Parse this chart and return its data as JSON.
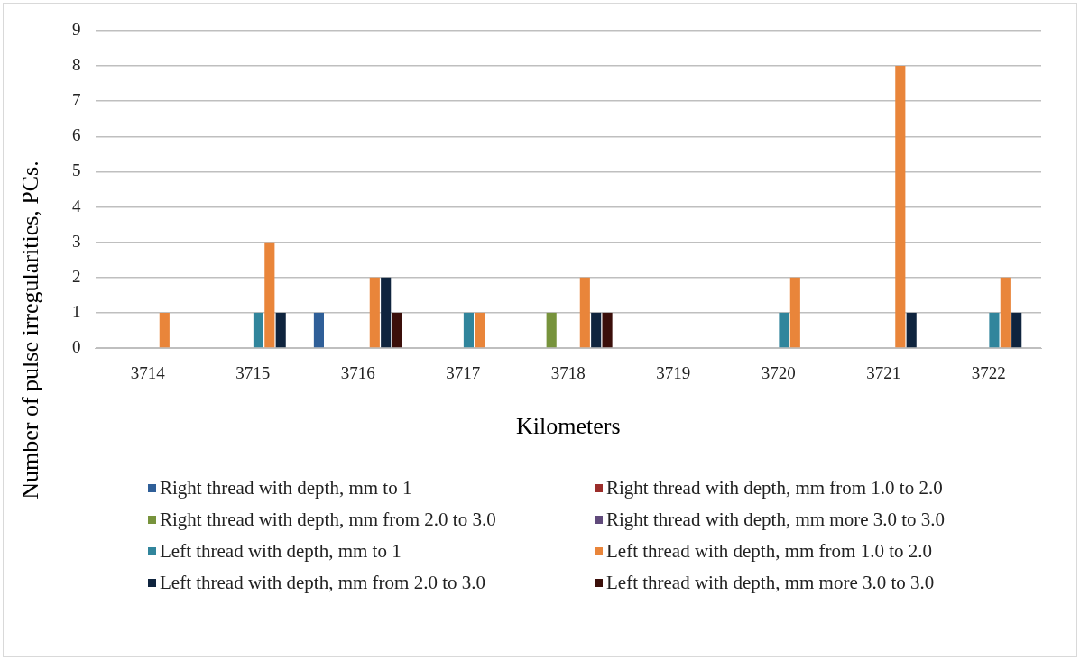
{
  "chart_data": {
    "type": "bar",
    "xlabel": "Kilometers",
    "ylabel": "Number  of  pulse  irregularities,   PCs.",
    "categories": [
      "3714",
      "3715",
      "3716",
      "3717",
      "3718",
      "3719",
      "3720",
      "3721",
      "3722"
    ],
    "series": [
      {
        "name": "Right thread with depth, mm to 1",
        "color": "#2f5f98",
        "values": [
          0,
          0,
          1,
          0,
          0,
          0,
          0,
          0,
          0
        ]
      },
      {
        "name": "Right thread with depth, mm from 1.0 to  2.0",
        "color": "#9b2d2a",
        "values": [
          0,
          0,
          0,
          0,
          0,
          0,
          0,
          0,
          0
        ]
      },
      {
        "name": "Right thread with depth, mm from 2.0 to 3.0",
        "color": "#77933c",
        "values": [
          0,
          0,
          0,
          0,
          1,
          0,
          0,
          0,
          0
        ]
      },
      {
        "name": "Right thread with depth, mm more 3.0 to 3.0",
        "color": "#604a7b",
        "values": [
          0,
          0,
          0,
          0,
          0,
          0,
          0,
          0,
          0
        ]
      },
      {
        "name": "Left thread with depth, mm to 1",
        "color": "#31859c",
        "values": [
          0,
          1,
          0,
          1,
          0,
          0,
          1,
          0,
          1
        ]
      },
      {
        "name": "Left thread with depth, mm from 1.0 to  2.0",
        "color": "#e9853a",
        "values": [
          1,
          3,
          2,
          1,
          2,
          0,
          2,
          8,
          2
        ]
      },
      {
        "name": "Left thread with depth, mm from 2.0 to 3.0",
        "color": "#0f243e",
        "values": [
          0,
          1,
          2,
          0,
          1,
          0,
          0,
          1,
          1
        ]
      },
      {
        "name": "Left thread with depth, mm more 3.0 to 3.0",
        "color": "#3b0f0a",
        "values": [
          0,
          0,
          1,
          0,
          1,
          0,
          0,
          0,
          0
        ]
      }
    ],
    "ylim": [
      0,
      9
    ],
    "yticks": [
      0,
      1,
      2,
      3,
      4,
      5,
      6,
      7,
      8,
      9
    ],
    "grid": "y",
    "legend": "bottom"
  }
}
